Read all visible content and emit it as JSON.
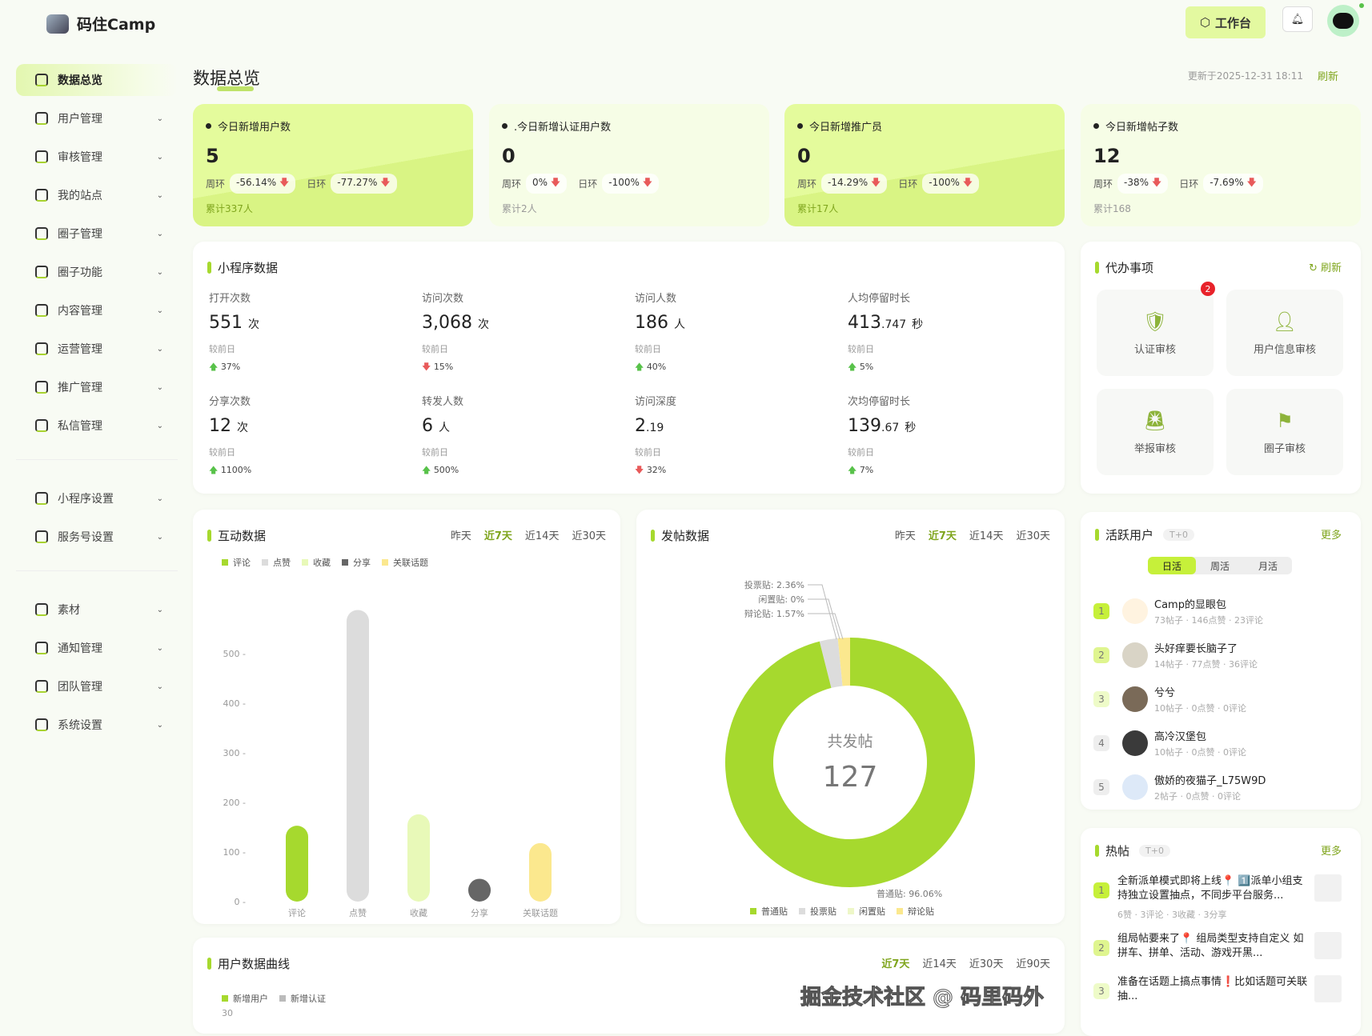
{
  "header": {
    "brand": "码住Camp",
    "workbench": "工作台"
  },
  "sidebar": {
    "groups": [
      [
        "数据总览",
        "用户管理",
        "审核管理",
        "我的站点",
        "圈子管理",
        "圈子功能",
        "内容管理",
        "运营管理",
        "推广管理",
        "私信管理"
      ],
      [
        "小程序设置",
        "服务号设置"
      ],
      [
        "素材",
        "通知管理",
        "团队管理",
        "系统设置"
      ]
    ],
    "active": "数据总览"
  },
  "page": {
    "title": "数据总览",
    "updated": "更新于2025-12-31 18:11",
    "refresh": "刷新"
  },
  "stats": [
    {
      "label": "今日新增用户数",
      "value": "5",
      "week_label": "周环",
      "week": "-56.14%",
      "day_label": "日环",
      "day": "-77.27%",
      "total": "累计337人"
    },
    {
      "label": ".今日新增认证用户数",
      "value": "0",
      "week_label": "周环",
      "week": "0%",
      "day_label": "日环",
      "day": "-100%",
      "total": "累计2人"
    },
    {
      "label": "今日新增推广员",
      "value": "0",
      "week_label": "周环",
      "week": "-14.29%",
      "day_label": "日环",
      "day": "-100%",
      "total": "累计17人"
    },
    {
      "label": "今日新增帖子数",
      "value": "12",
      "week_label": "周环",
      "week": "-38%",
      "day_label": "日环",
      "day": "-7.69%",
      "total": "累计168"
    }
  ],
  "miniprogram": {
    "title": "小程序数据",
    "compare": "较前日",
    "items": [
      {
        "label": "打开次数",
        "value": "551",
        "decimal": "",
        "unit": "次",
        "change": "37%",
        "dir": "up"
      },
      {
        "label": "访问次数",
        "value": "3,068",
        "decimal": "",
        "unit": "次",
        "change": "15%",
        "dir": "down"
      },
      {
        "label": "访问人数",
        "value": "186",
        "decimal": "",
        "unit": "人",
        "change": "40%",
        "dir": "up"
      },
      {
        "label": "人均停留时长",
        "value": "413",
        "decimal": ".747",
        "unit": "秒",
        "change": "5%",
        "dir": "up"
      },
      {
        "label": "分享次数",
        "value": "12",
        "decimal": "",
        "unit": "次",
        "change": "1100%",
        "dir": "up"
      },
      {
        "label": "转发人数",
        "value": "6",
        "decimal": "",
        "unit": "人",
        "change": "500%",
        "dir": "up"
      },
      {
        "label": "访问深度",
        "value": "2",
        "decimal": ".19",
        "unit": "",
        "change": "32%",
        "dir": "down"
      },
      {
        "label": "次均停留时长",
        "value": "139",
        "decimal": ".67",
        "unit": "秒",
        "change": "7%",
        "dir": "up"
      }
    ]
  },
  "todo": {
    "title": "代办事项",
    "refresh": "刷新",
    "items": [
      {
        "label": "认证审核",
        "icon": "shield-check-icon",
        "badge": "2"
      },
      {
        "label": "用户信息审核",
        "icon": "user-x-icon",
        "badge": ""
      },
      {
        "label": "举报审核",
        "icon": "alarm-icon",
        "badge": ""
      },
      {
        "label": "圈子审核",
        "icon": "flag-icon",
        "badge": ""
      }
    ]
  },
  "ranges": {
    "yesterday": "昨天",
    "d7": "近7天",
    "d14": "近14天",
    "d30": "近30天",
    "d90": "近90天"
  },
  "chart_data": [
    {
      "type": "bar",
      "title": "互动数据",
      "categories": [
        "评论",
        "点赞",
        "收藏",
        "分享",
        "关联话题"
      ],
      "values": [
        153,
        588,
        176,
        46,
        118
      ],
      "colors": [
        "#a6d92e",
        "#dcdcdc",
        "#e8f9b8",
        "#666666",
        "#fbe88e"
      ],
      "ylim": [
        0,
        600
      ],
      "yticks": [
        0,
        100,
        200,
        300,
        400,
        500
      ],
      "legend": "top-left"
    },
    {
      "type": "pie",
      "title": "发帖数据",
      "center_label": "共发帖",
      "center_value": "127",
      "categories": [
        "普通贴",
        "投票贴",
        "闲置贴",
        "辩论贴"
      ],
      "values": [
        96.06,
        2.36,
        0,
        1.57
      ],
      "colors": [
        "#a6d92e",
        "#dcdcdc",
        "#eef7c8",
        "#fbe88e"
      ],
      "labels": [
        "普通贴: 96.06%",
        "投票贴: 2.36%",
        "闲置贴: 0%",
        "辩论贴: 1.57%"
      ],
      "legend": "bottom"
    },
    {
      "type": "line",
      "title": "用户数据曲线",
      "series": [
        {
          "name": "新增用户"
        },
        {
          "name": "新增认证"
        }
      ],
      "yticks": [
        30
      ]
    }
  ],
  "active_users": {
    "title": "活跃用户",
    "tag": "T+0",
    "more": "更多",
    "tabs": [
      "日活",
      "周活",
      "月活"
    ],
    "users": [
      {
        "rank": "1",
        "name": "Camp的显眼包",
        "stats": "73帖子 · 146点赞 · 23评论"
      },
      {
        "rank": "2",
        "name": "头好痒要长脑子了",
        "stats": "14帖子 · 77点赞 · 36评论"
      },
      {
        "rank": "3",
        "name": "兮兮",
        "stats": "10帖子 · 0点赞 · 0评论"
      },
      {
        "rank": "4",
        "name": "高冷汉堡包",
        "stats": "10帖子 · 0点赞 · 0评论"
      },
      {
        "rank": "5",
        "name": "傲娇的夜猫子_L75W9D",
        "stats": "2帖子 · 0点赞 · 0评论"
      }
    ]
  },
  "hot_posts": {
    "title": "热帖",
    "tag": "T+0",
    "more": "更多",
    "posts": [
      {
        "rank": "1",
        "text": "全新派单模式即将上线📍 1️⃣派单小组支持独立设置抽点，不同步平台服务...",
        "stats": "6赞 · 3评论 · 3收藏 · 3分享"
      },
      {
        "rank": "2",
        "text": "组局帖要来了📍 组局类型支持自定义 如拼车、拼单、活动、游戏开黑...",
        "stats": ""
      },
      {
        "rank": "3",
        "text": "准备在话题上搞点事情❗比如话题可关联抽...",
        "stats": ""
      }
    ]
  },
  "watermark": "掘金技术社区 @ 码里码外"
}
